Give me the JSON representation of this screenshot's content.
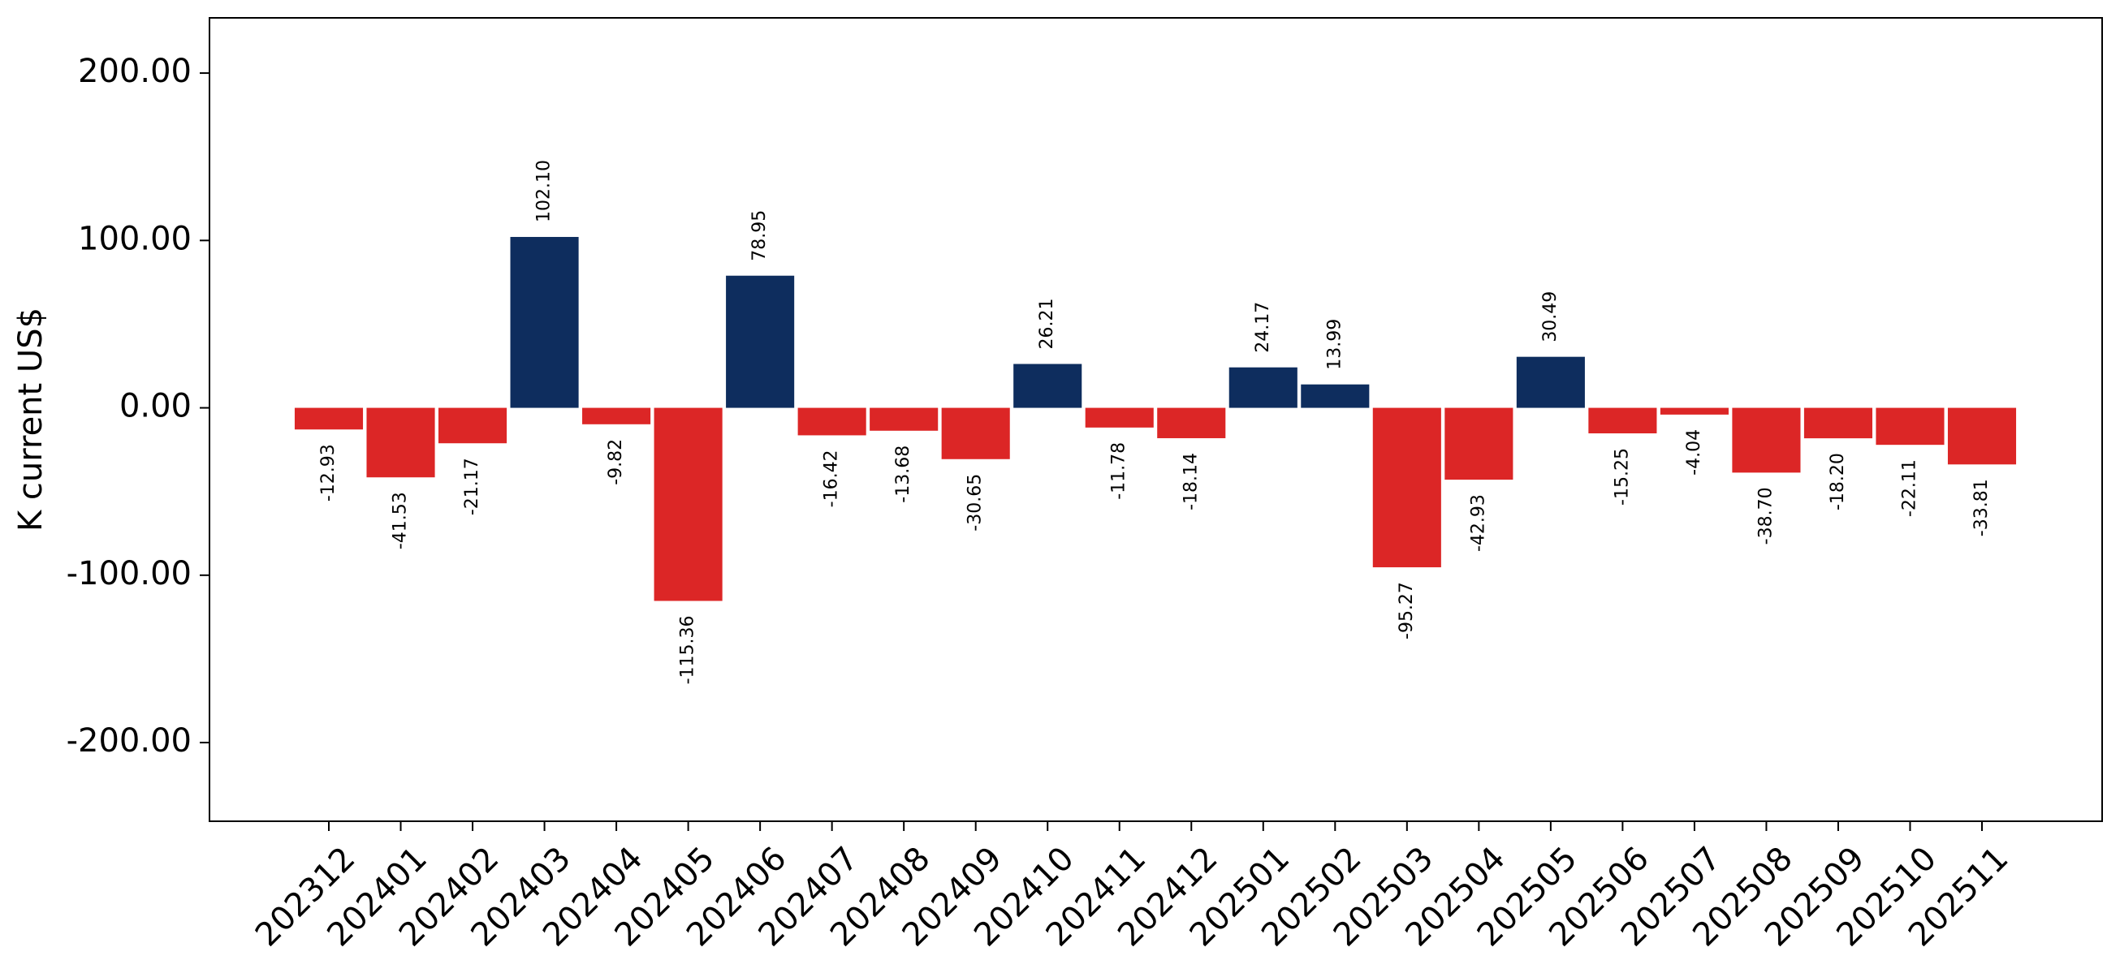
{
  "chart_data": {
    "type": "bar",
    "y_label": "K current US$",
    "categories": [
      "202312",
      "202401",
      "202402",
      "202403",
      "202404",
      "202405",
      "202406",
      "202407",
      "202408",
      "202409",
      "202410",
      "202411",
      "202412",
      "202501",
      "202502",
      "202503",
      "202504",
      "202505",
      "202506",
      "202507",
      "202508",
      "202509",
      "202510",
      "202511"
    ],
    "values": [
      -12.93,
      -41.53,
      -21.17,
      102.1,
      -9.82,
      -115.36,
      78.95,
      -16.42,
      -13.68,
      -30.65,
      26.21,
      -11.78,
      -18.14,
      24.17,
      13.99,
      -95.27,
      -42.93,
      30.49,
      -15.25,
      -4.04,
      -38.7,
      -18.2,
      -22.11,
      -33.81
    ],
    "value_labels": [
      "-12.93",
      "-41.53",
      "-21.17",
      "102.10",
      "-9.82",
      "-115.36",
      "78.95",
      "-16.42",
      "-13.68",
      "-30.65",
      "26.21",
      "-11.78",
      "-18.14",
      "24.17",
      "13.99",
      "-95.27",
      "-42.93",
      "30.49",
      "-15.25",
      "-4.04",
      "-38.70",
      "-18.20",
      "-22.11",
      "-33.81"
    ],
    "positive_color": "#0e2d5e",
    "negative_color": "#dc2626",
    "ylim": [
      -247,
      233
    ],
    "yticks": [
      {
        "value": -200,
        "label": "-200.00"
      },
      {
        "value": -100,
        "label": "-100.00"
      },
      {
        "value": 0,
        "label": "0.00"
      },
      {
        "value": 100,
        "label": "100.00"
      },
      {
        "value": 200,
        "label": "200.00"
      }
    ],
    "grid": false
  }
}
